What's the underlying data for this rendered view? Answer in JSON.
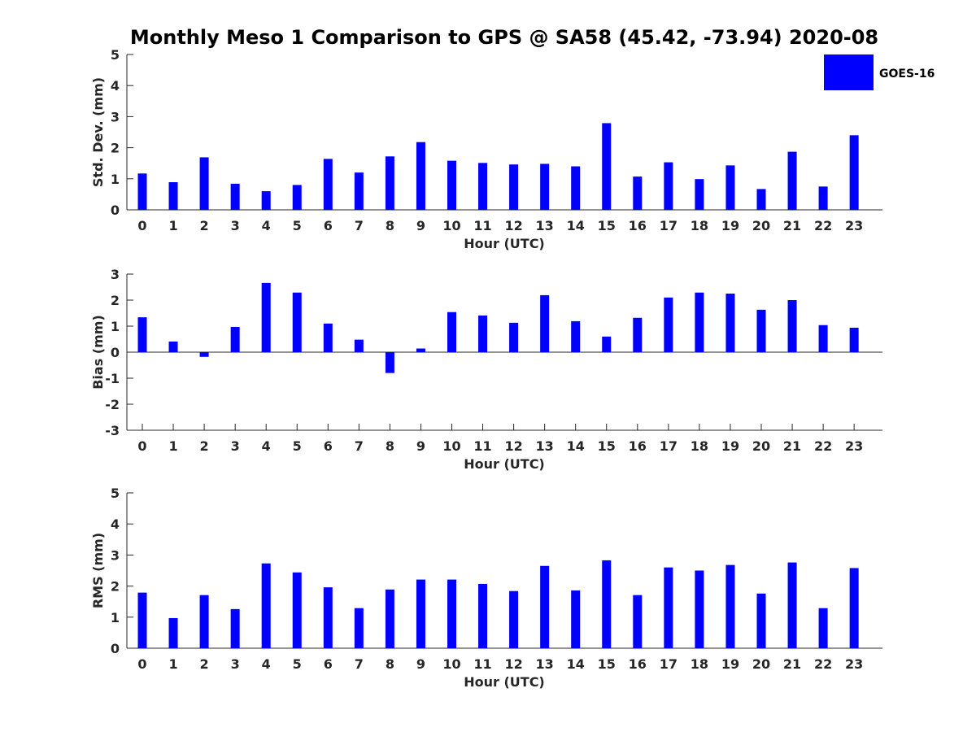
{
  "title": "Monthly Meso 1 Comparison to GPS @ SA58 (45.42, -73.94) 2020-08",
  "legend": {
    "label": "GOES-16",
    "color": "#0000ff",
    "placement": "top-right"
  },
  "chart_data": [
    {
      "type": "bar",
      "ylabel": "Std. Dev. (mm)",
      "xlabel": "Hour (UTC)",
      "ylim": [
        0,
        5
      ],
      "yticks": [
        0,
        1,
        2,
        3,
        4,
        5
      ],
      "categories": [
        "0",
        "1",
        "2",
        "3",
        "4",
        "5",
        "6",
        "7",
        "8",
        "9",
        "10",
        "11",
        "12",
        "13",
        "14",
        "15",
        "16",
        "17",
        "18",
        "19",
        "20",
        "21",
        "22",
        "23"
      ],
      "series": [
        {
          "name": "GOES-16",
          "values": [
            1.17,
            0.89,
            1.69,
            0.84,
            0.6,
            0.8,
            1.64,
            1.2,
            1.72,
            2.18,
            1.58,
            1.51,
            1.46,
            1.48,
            1.4,
            2.79,
            1.07,
            1.53,
            0.99,
            1.43,
            0.67,
            1.87,
            0.75,
            2.4
          ]
        }
      ]
    },
    {
      "type": "bar",
      "ylabel": "Bias (mm)",
      "xlabel": "Hour (UTC)",
      "ylim": [
        -3,
        3
      ],
      "yticks": [
        -3,
        -2,
        -1,
        0,
        1,
        2,
        3
      ],
      "categories": [
        "0",
        "1",
        "2",
        "3",
        "4",
        "5",
        "6",
        "7",
        "8",
        "9",
        "10",
        "11",
        "12",
        "13",
        "14",
        "15",
        "16",
        "17",
        "18",
        "19",
        "20",
        "21",
        "22",
        "23"
      ],
      "series": [
        {
          "name": "GOES-16",
          "values": [
            1.34,
            0.41,
            -0.18,
            0.97,
            2.66,
            2.29,
            1.1,
            0.48,
            -0.8,
            0.14,
            1.54,
            1.41,
            1.13,
            2.19,
            1.19,
            0.6,
            1.32,
            2.1,
            2.29,
            2.25,
            1.63,
            2.0,
            1.04,
            0.94
          ]
        }
      ]
    },
    {
      "type": "bar",
      "ylabel": "RMS (mm)",
      "xlabel": "Hour (UTC)",
      "ylim": [
        0,
        5
      ],
      "yticks": [
        0,
        1,
        2,
        3,
        4,
        5
      ],
      "categories": [
        "0",
        "1",
        "2",
        "3",
        "4",
        "5",
        "6",
        "7",
        "8",
        "9",
        "10",
        "11",
        "12",
        "13",
        "14",
        "15",
        "16",
        "17",
        "18",
        "19",
        "20",
        "21",
        "22",
        "23"
      ],
      "series": [
        {
          "name": "GOES-16",
          "values": [
            1.79,
            0.97,
            1.71,
            1.26,
            2.73,
            2.44,
            1.96,
            1.29,
            1.89,
            2.21,
            2.21,
            2.07,
            1.84,
            2.65,
            1.86,
            2.83,
            1.71,
            2.6,
            2.5,
            2.68,
            1.76,
            2.76,
            1.29,
            2.58
          ]
        }
      ]
    }
  ]
}
